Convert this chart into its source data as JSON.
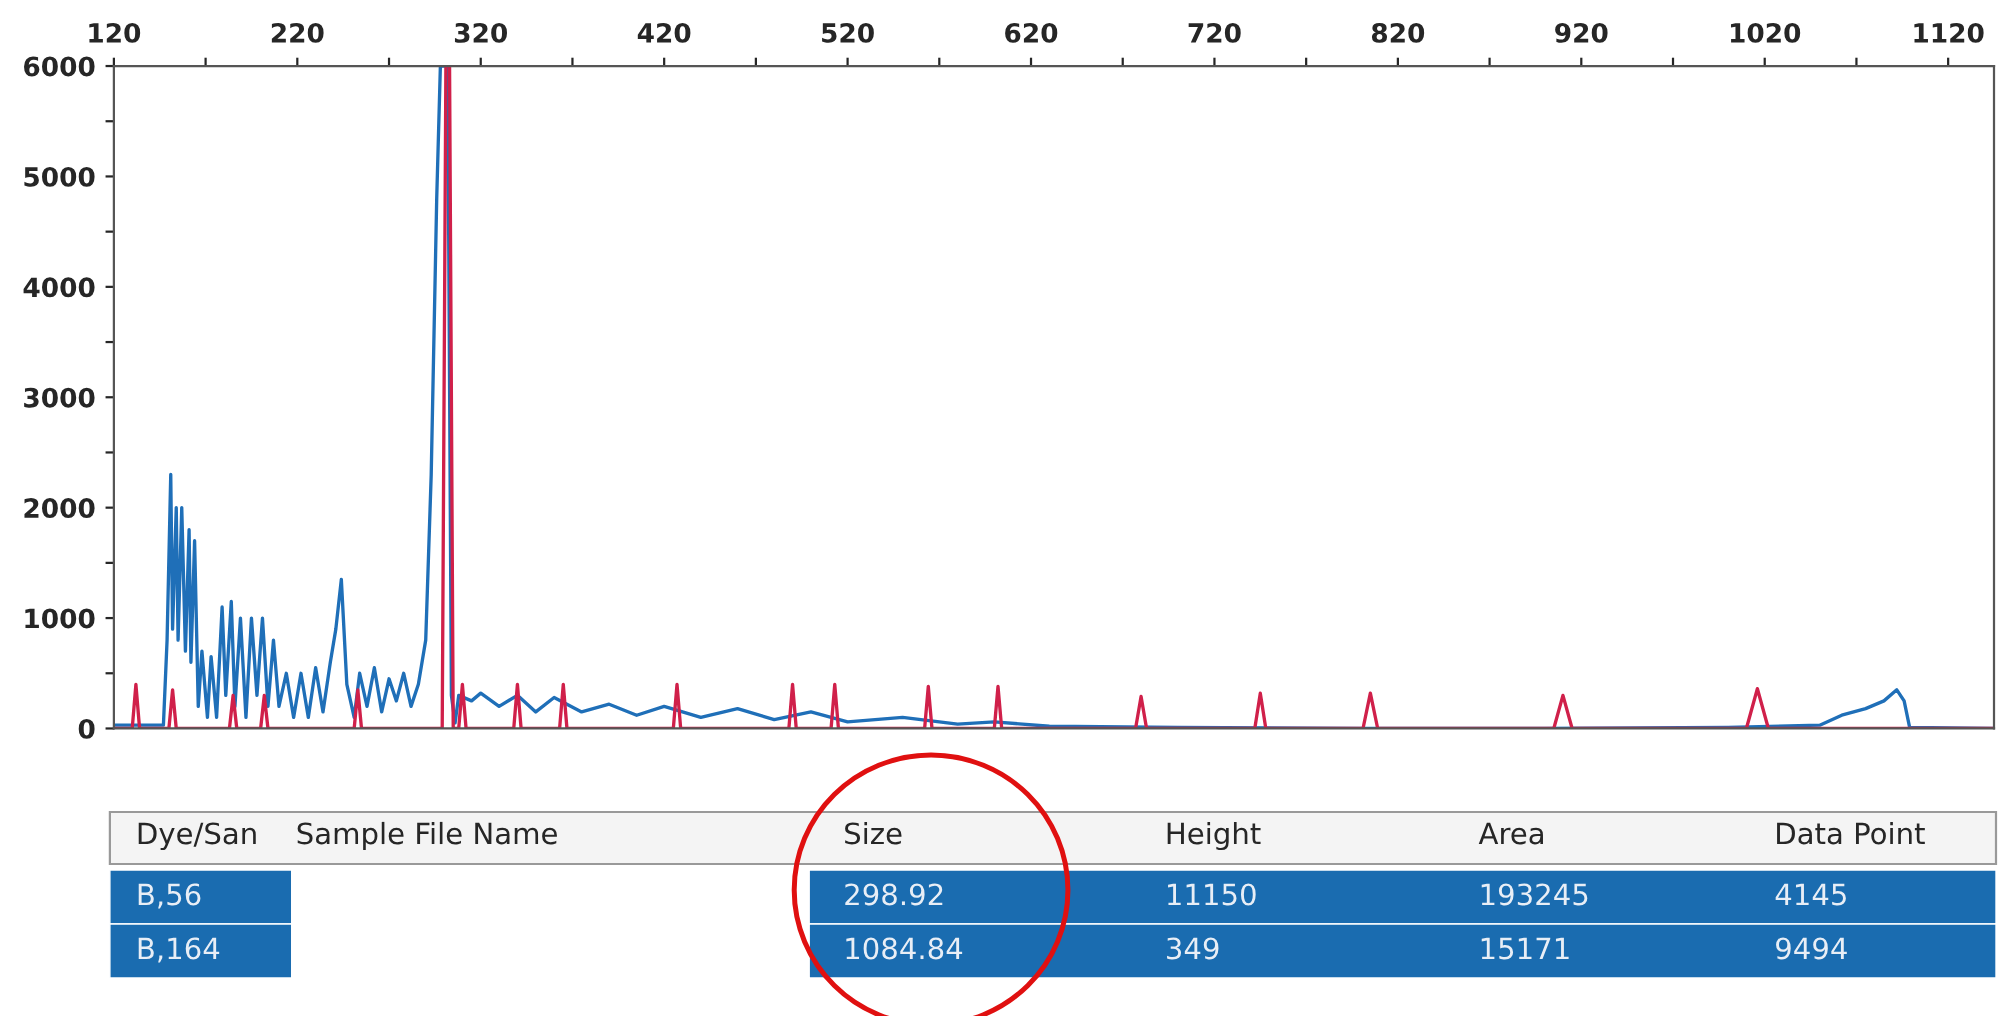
{
  "chart_data": {
    "type": "line",
    "series": [
      {
        "color": "#1f6fb8",
        "x": [
          120,
          147,
          149,
          151,
          152,
          154,
          155,
          157,
          159,
          161,
          162,
          164,
          166,
          168,
          171,
          173,
          176,
          179,
          181,
          184,
          186,
          189,
          192,
          195,
          198,
          201,
          204,
          207,
          210,
          214,
          218,
          222,
          226,
          230,
          234,
          238,
          241,
          244,
          247,
          251,
          254,
          258,
          262,
          266,
          270,
          274,
          278,
          282,
          286,
          290,
          293,
          296,
          298,
          302,
          304,
          306,
          308,
          315,
          320,
          330,
          340,
          350,
          360,
          375,
          390,
          405,
          420,
          440,
          460,
          480,
          500,
          520,
          550,
          580,
          600,
          630,
          700,
          800,
          900,
          1000,
          1050,
          1062,
          1075,
          1085,
          1092,
          1096,
          1099,
          1145
        ],
        "values": [
          30,
          30,
          800,
          2300,
          900,
          2000,
          800,
          2000,
          700,
          1800,
          600,
          1700,
          200,
          700,
          100,
          650,
          100,
          1100,
          300,
          1150,
          200,
          1000,
          100,
          1000,
          300,
          1000,
          200,
          800,
          200,
          500,
          100,
          500,
          100,
          550,
          150,
          600,
          900,
          1350,
          400,
          100,
          500,
          200,
          550,
          150,
          450,
          250,
          500,
          200,
          400,
          800,
          2300,
          4800,
          6000,
          6000,
          300,
          50,
          300,
          250,
          320,
          200,
          300,
          150,
          280,
          150,
          220,
          120,
          200,
          100,
          180,
          80,
          150,
          60,
          100,
          40,
          60,
          20,
          10,
          0,
          0,
          10,
          30,
          120,
          180,
          250,
          350,
          250,
          10,
          0
        ]
      },
      {
        "color": "#d0204a",
        "x": [
          120,
          130,
          132,
          134,
          150,
          152,
          154,
          183,
          185,
          187,
          200,
          202,
          204,
          251,
          253,
          255,
          299,
          301,
          303,
          305,
          308,
          310,
          312,
          338,
          340,
          342,
          363,
          365,
          367,
          425,
          427,
          429,
          488,
          490,
          492,
          511,
          513,
          515,
          562,
          564,
          566,
          600,
          602,
          604,
          677,
          680,
          683,
          742,
          745,
          748,
          801,
          805,
          809,
          905,
          910,
          915,
          1010,
          1016,
          1022,
          1145
        ],
        "values": [
          0,
          0,
          400,
          0,
          0,
          350,
          0,
          0,
          300,
          0,
          0,
          300,
          0,
          0,
          350,
          0,
          0,
          6000,
          6000,
          0,
          0,
          400,
          0,
          0,
          400,
          0,
          0,
          400,
          0,
          0,
          400,
          0,
          0,
          400,
          0,
          0,
          400,
          0,
          0,
          380,
          0,
          0,
          380,
          0,
          0,
          290,
          0,
          0,
          320,
          0,
          0,
          320,
          0,
          0,
          300,
          0,
          0,
          360,
          0,
          0
        ]
      }
    ],
    "xlim": [
      120,
      1145
    ],
    "xticks": [
      120,
      {
        "value": 170,
        "label": null
      },
      220,
      {
        "value": 270,
        "label": null
      },
      320,
      {
        "value": 370,
        "label": null
      },
      420,
      {
        "value": 470,
        "label": null
      },
      520,
      {
        "value": 570,
        "label": null
      },
      620,
      {
        "value": 670,
        "label": null
      },
      720,
      {
        "value": 770,
        "label": null
      },
      820,
      {
        "value": 870,
        "label": null
      },
      920,
      {
        "value": 970,
        "label": null
      },
      1020,
      {
        "value": 1070,
        "label": null
      },
      1120
    ],
    "ylim": [
      0,
      6000
    ],
    "yticks": [
      0,
      {
        "value": 500,
        "label": null
      },
      1000,
      {
        "value": 1500,
        "label": null
      },
      2000,
      {
        "value": 2500,
        "label": null
      },
      3000,
      {
        "value": 3500,
        "label": null
      },
      4000,
      {
        "value": 4500,
        "label": null
      },
      5000,
      {
        "value": 5500,
        "label": null
      },
      6000
    ],
    "grid": false,
    "legend": false,
    "marker": "none",
    "line_style": "solid",
    "annotations": [
      "Dye/San",
      "Sample File Name",
      "Size",
      "Height",
      "Area",
      "Data Point",
      "B,56",
      "298.92",
      "11150",
      "193245",
      "4145",
      "B,164",
      "1084.84",
      "349",
      "15171",
      "9494"
    ]
  }
}
